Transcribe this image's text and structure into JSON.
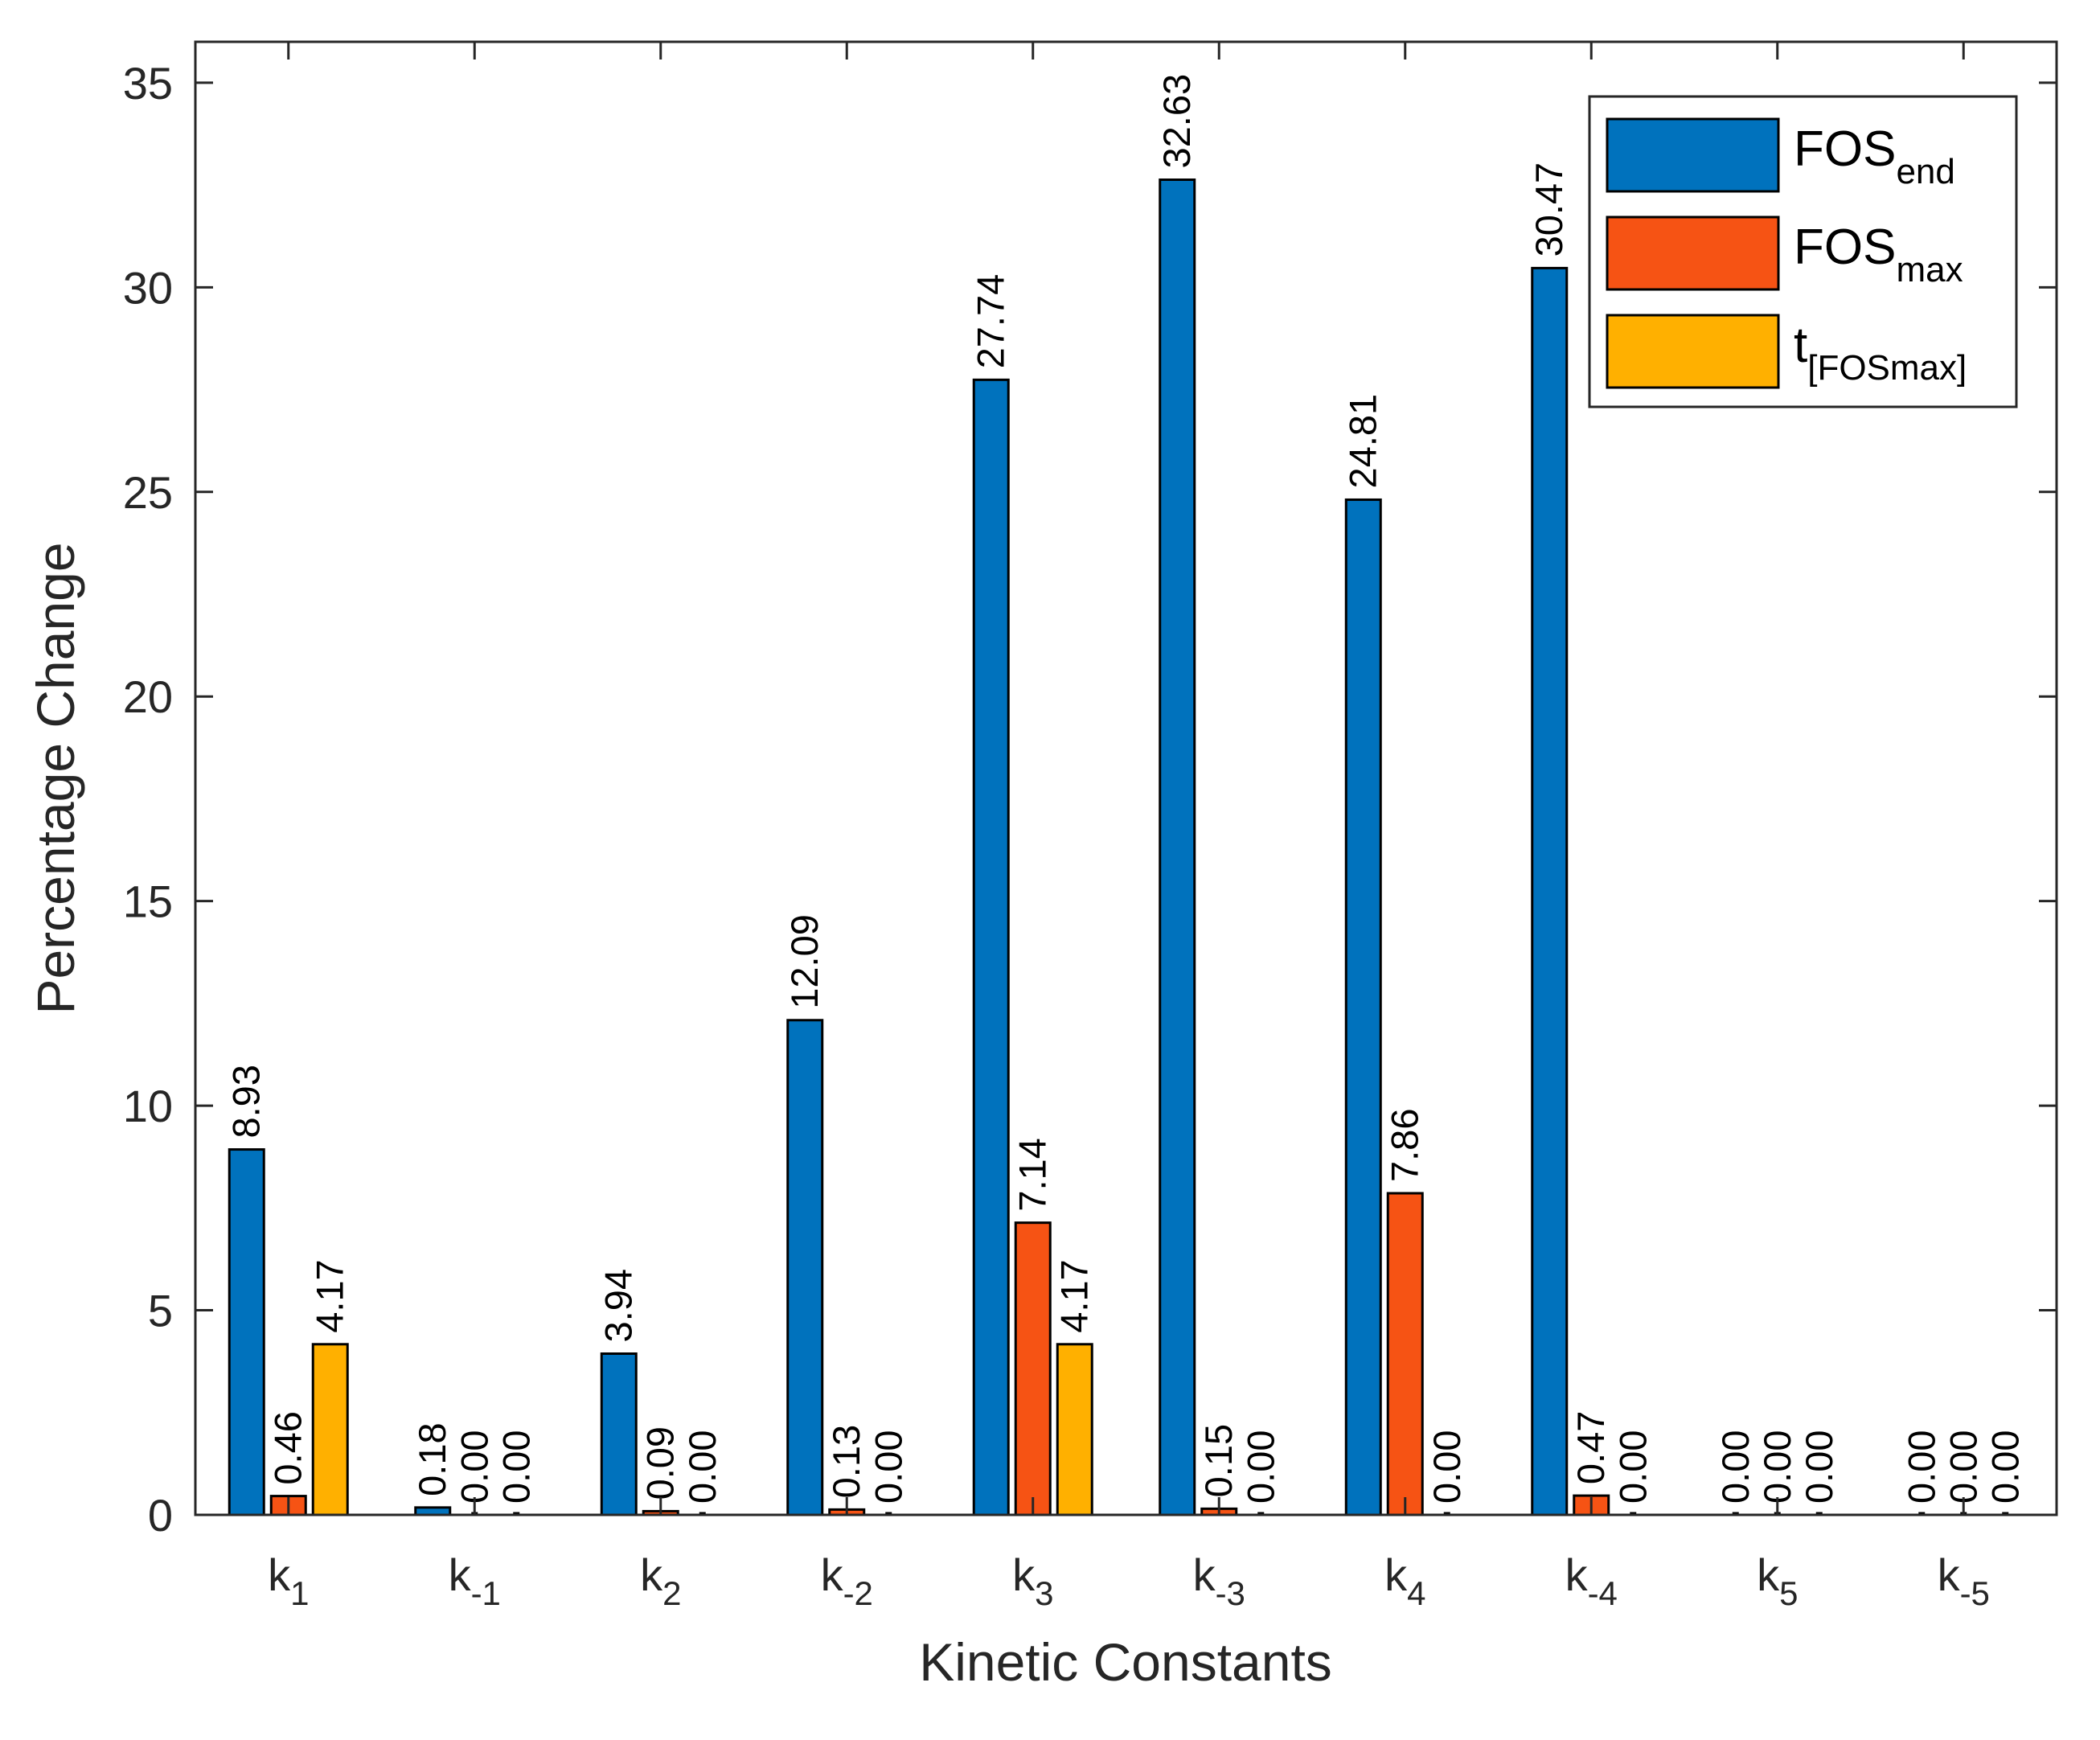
{
  "chart_data": {
    "type": "bar",
    "title": "",
    "xlabel": "Kinetic Constants",
    "ylabel": "Percentage Change",
    "ylim": [
      0,
      36
    ],
    "yticks": [
      0,
      5,
      10,
      15,
      20,
      25,
      30,
      35
    ],
    "categories": [
      {
        "base": "k",
        "sub": "1"
      },
      {
        "base": "k",
        "sub": "-1"
      },
      {
        "base": "k",
        "sub": "2"
      },
      {
        "base": "k",
        "sub": "-2"
      },
      {
        "base": "k",
        "sub": "3"
      },
      {
        "base": "k",
        "sub": "-3"
      },
      {
        "base": "k",
        "sub": "4"
      },
      {
        "base": "k",
        "sub": "-4"
      },
      {
        "base": "k",
        "sub": "5"
      },
      {
        "base": "k",
        "sub": "-5"
      }
    ],
    "series": [
      {
        "name": "FOS",
        "name_sub": "end",
        "color": "#0072BD",
        "values": [
          8.93,
          0.18,
          3.94,
          12.09,
          27.74,
          32.63,
          24.81,
          30.47,
          0.0,
          0.0
        ],
        "labels": [
          "8.93",
          "0.18",
          "3.94",
          "12.09",
          "27.74",
          "32.63",
          "24.81",
          "30.47",
          "0.00",
          "0.00"
        ]
      },
      {
        "name": "FOS",
        "name_sub": "max",
        "color": "#F65314",
        "values": [
          0.46,
          0.0,
          0.09,
          0.13,
          7.14,
          0.15,
          7.86,
          0.47,
          0.0,
          0.0
        ],
        "labels": [
          "0.46",
          "0.00",
          "0.09",
          "0.13",
          "7.14",
          "0.15",
          "7.86",
          "0.47",
          "0.00",
          "0.00"
        ]
      },
      {
        "name": "t",
        "name_sub": "[FOSmax]",
        "color": "#FFB000",
        "values": [
          4.17,
          0.0,
          0.0,
          0.0,
          4.17,
          0.0,
          0.0,
          0.0,
          0.0,
          0.0
        ],
        "labels": [
          "4.17",
          "0.00",
          "0.00",
          "0.00",
          "4.17",
          "0.00",
          "0.00",
          "0.00",
          "0.00",
          "0.00"
        ]
      }
    ],
    "legend_position": "top-right",
    "grid": false
  }
}
